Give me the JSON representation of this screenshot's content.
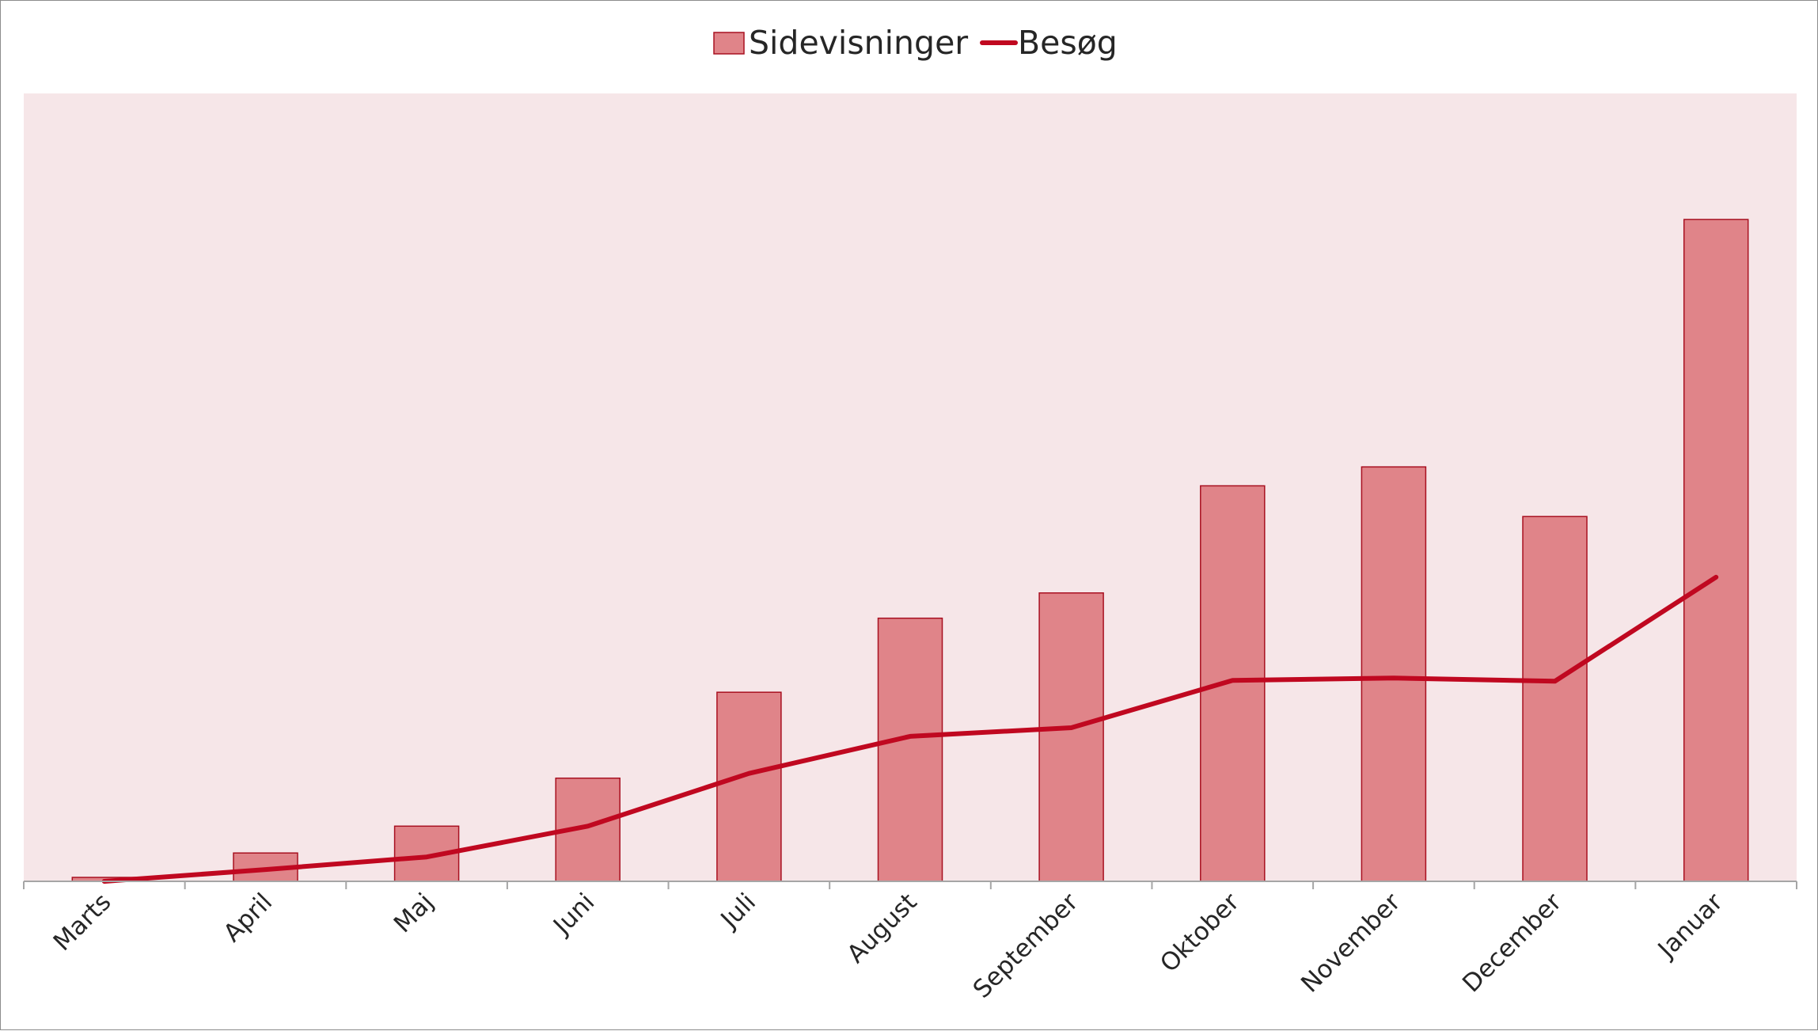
{
  "chart_data": {
    "type": "bar",
    "categories": [
      "Marts",
      "April",
      "Maj",
      "Juni",
      "Juli",
      "August",
      "September",
      "Oktober",
      "November",
      "December",
      "Januar"
    ],
    "series": [
      {
        "name": "Sidevisninger",
        "type": "bar",
        "values": [
          5,
          36,
          70,
          131,
          240,
          334,
          366,
          502,
          526,
          463,
          840
        ]
      },
      {
        "name": "Besøg",
        "type": "line",
        "values": [
          0,
          15,
          31,
          70,
          137,
          184,
          195,
          255,
          258,
          254,
          386
        ]
      }
    ],
    "legend_position": "top-center",
    "grid": false,
    "ylim": [
      0,
      1000
    ],
    "colors": {
      "plot_background": "#f6e6e8",
      "bar_fill": "#e08489",
      "bar_stroke": "#a81020",
      "line": "#c00820",
      "axis": "#a6a6a6",
      "text": "#262626"
    }
  }
}
